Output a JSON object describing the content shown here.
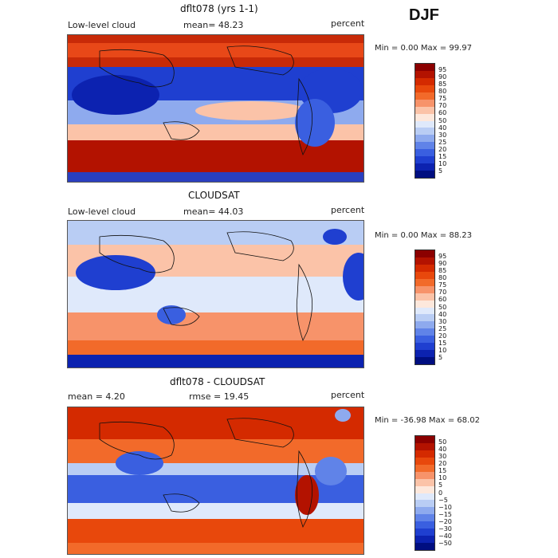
{
  "season": "DJF",
  "panels": [
    {
      "title": "dflt078 (yrs 1-1)",
      "left_label": "Low-level cloud",
      "mid_label": "mean=  48.23",
      "right_label": "percent",
      "minmax": "Min =   0.00 Max =  99.97",
      "colorbar": {
        "labels": [
          "95",
          "90",
          "85",
          "80",
          "75",
          "70",
          "60",
          "50",
          "40",
          "30",
          "25",
          "20",
          "15",
          "10",
          "5"
        ],
        "colors": [
          "#8b0000",
          "#b31200",
          "#d42a00",
          "#e8480c",
          "#f26a2a",
          "#f7936a",
          "#fbc3a8",
          "#fde8dc",
          "#dfe9fb",
          "#b9cdf4",
          "#8eaaee",
          "#6083e8",
          "#3a5fe0",
          "#1f3fd0",
          "#0c22b0",
          "#000e80"
        ]
      }
    },
    {
      "title": "CLOUDSAT",
      "left_label": "Low-level cloud",
      "mid_label": "mean=  44.03",
      "right_label": "percent",
      "minmax": "Min =   0.00 Max =  88.23",
      "colorbar": {
        "labels": [
          "95",
          "90",
          "85",
          "80",
          "75",
          "70",
          "60",
          "50",
          "40",
          "30",
          "25",
          "20",
          "15",
          "10",
          "5"
        ],
        "colors": [
          "#8b0000",
          "#b31200",
          "#d42a00",
          "#e8480c",
          "#f26a2a",
          "#f7936a",
          "#fbc3a8",
          "#fde8dc",
          "#dfe9fb",
          "#b9cdf4",
          "#8eaaee",
          "#6083e8",
          "#3a5fe0",
          "#1f3fd0",
          "#0c22b0",
          "#000e80"
        ]
      }
    },
    {
      "title": "dflt078 - CLOUDSAT",
      "left_label": "mean =    4.20",
      "mid_label": "rmse =  19.45",
      "right_label": "percent",
      "minmax": "Min = -36.98 Max =  68.02",
      "colorbar": {
        "labels": [
          "50",
          "40",
          "30",
          "20",
          "15",
          "10",
          "5",
          "0",
          "−5",
          "−10",
          "−15",
          "−20",
          "−30",
          "−40",
          "−50"
        ],
        "colors": [
          "#8b0000",
          "#b31200",
          "#d42a00",
          "#e8480c",
          "#f26a2a",
          "#f7936a",
          "#fbc3a8",
          "#fde8dc",
          "#dfe9fb",
          "#b9cdf4",
          "#8eaaee",
          "#6083e8",
          "#3a5fe0",
          "#1f3fd0",
          "#0c22b0",
          "#000e80"
        ]
      }
    }
  ]
}
